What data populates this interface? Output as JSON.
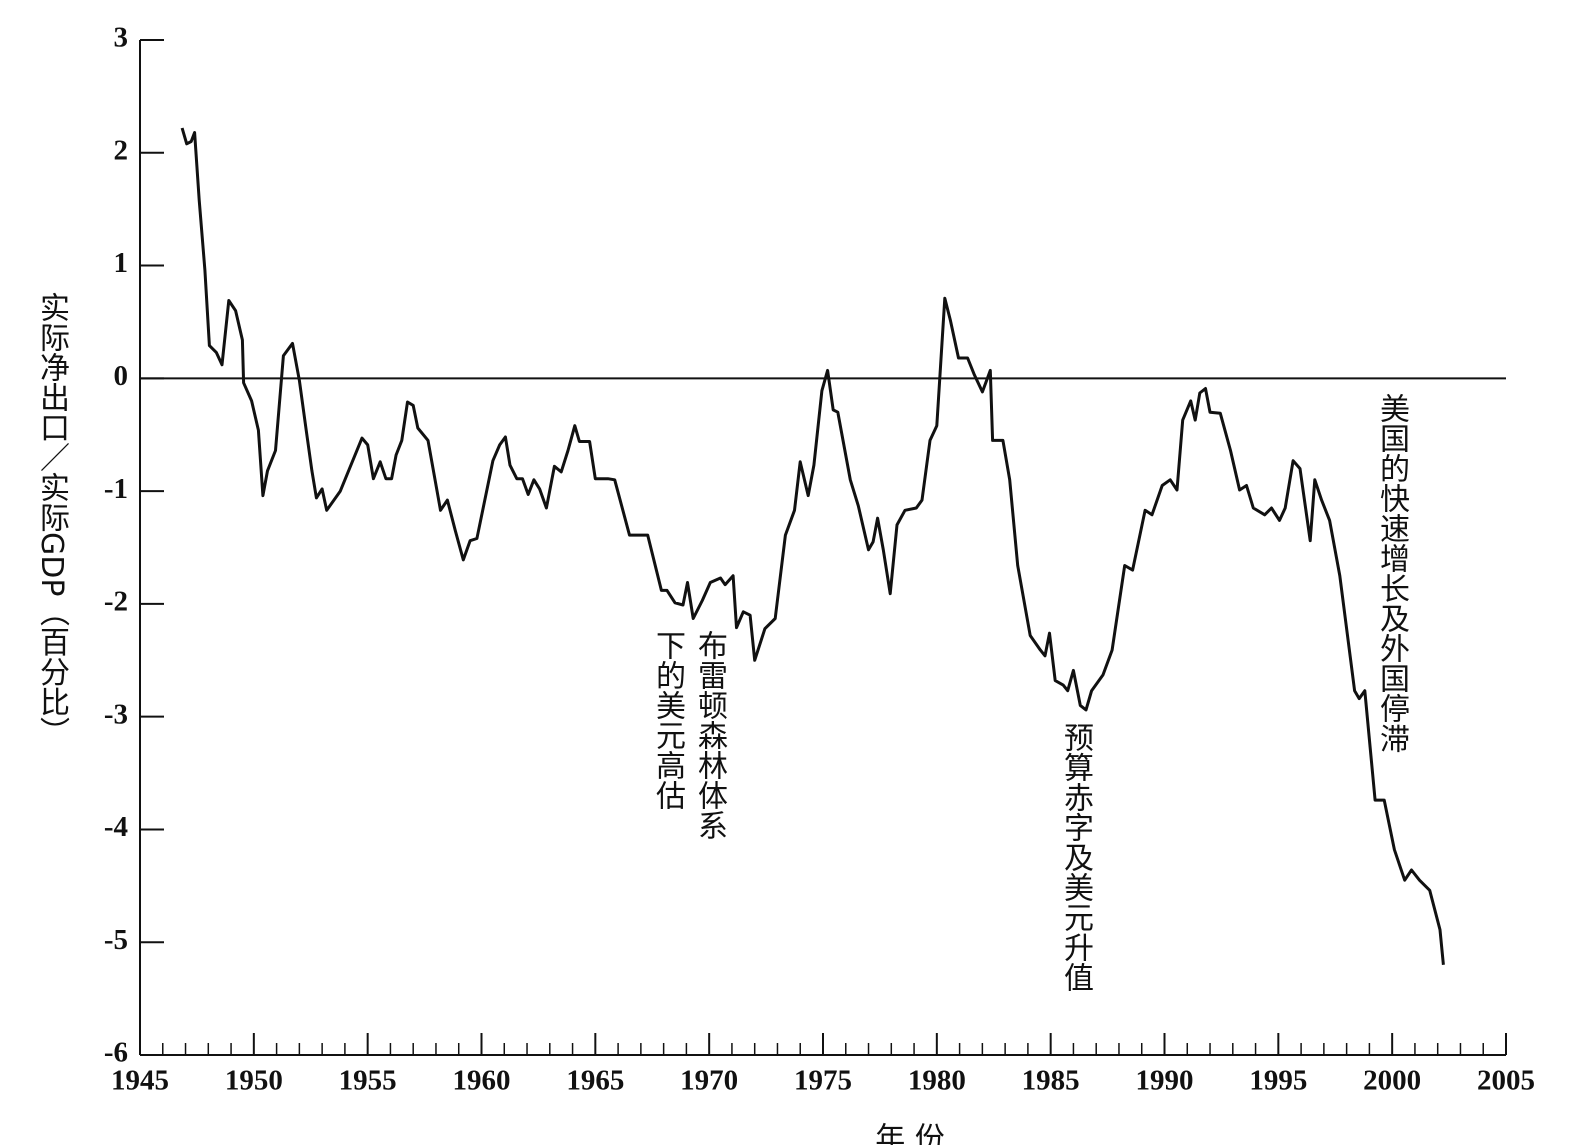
{
  "chart_data": {
    "type": "line",
    "y_label": "实际净出口／实际GDP（百分比）",
    "x_label": "年 份",
    "annotations": [
      [
        "布雷顿森林体系",
        "下的美元高估"
      ],
      [
        "预算赤字及美元升值"
      ],
      [
        "美国的快速增长及外国停滞"
      ]
    ],
    "xlim": [
      1945,
      2005
    ],
    "xticks": [
      1945,
      1950,
      1955,
      1960,
      1965,
      1970,
      1975,
      1980,
      1985,
      1990,
      1995,
      2000,
      2005
    ],
    "xminorticks": [
      1946,
      1947,
      1948,
      1949,
      1951,
      1952,
      1953,
      1954,
      1956,
      1957,
      1958,
      1959,
      1961,
      1962,
      1963,
      1964,
      1966,
      1967,
      1968,
      1969,
      1971,
      1972,
      1973,
      1974,
      1976,
      1977,
      1978,
      1979,
      1981,
      1982,
      1983,
      1984,
      1986,
      1987,
      1988,
      1989,
      1991,
      1992,
      1993,
      1994,
      1996,
      1997,
      1998,
      1999,
      2001,
      2002,
      2003,
      2004
    ],
    "ylim": [
      -6,
      3
    ],
    "yticks": [
      -6,
      -5,
      -4,
      -3,
      -2,
      -1,
      0,
      1,
      2,
      3
    ],
    "reference_line": 0,
    "color": "#111111",
    "x": [
      1946.85,
      1947.05,
      1947.25,
      1947.4,
      1947.6,
      1947.85,
      1948.05,
      1948.35,
      1948.6,
      1948.9,
      1949.2,
      1949.5,
      1949.55,
      1949.9,
      1950.2,
      1950.4,
      1950.6,
      1950.95,
      1951.3,
      1951.7,
      1952.0,
      1952.3,
      1952.55,
      1952.75,
      1953.0,
      1953.2,
      1953.8,
      1954.75,
      1955.0,
      1955.25,
      1955.55,
      1955.8,
      1956.05,
      1956.25,
      1956.5,
      1956.75,
      1957.0,
      1957.2,
      1957.65,
      1958.2,
      1958.5,
      1958.85,
      1959.2,
      1959.5,
      1959.8,
      1960.5,
      1960.8,
      1961.05,
      1961.25,
      1961.55,
      1961.8,
      1962.05,
      1962.3,
      1962.55,
      1962.85,
      1963.2,
      1963.5,
      1963.8,
      1964.1,
      1964.3,
      1964.75,
      1965.0,
      1965.55,
      1965.85,
      1966.5,
      1967.3,
      1967.9,
      1968.15,
      1968.5,
      1968.85,
      1969.05,
      1969.3,
      1969.7,
      1970.05,
      1970.5,
      1970.7,
      1971.05,
      1971.2,
      1971.5,
      1971.8,
      1972.0,
      1972.45,
      1972.9,
      1973.35,
      1973.75,
      1974.0,
      1974.35,
      1974.6,
      1974.95,
      1975.2,
      1975.45,
      1975.65,
      1976.2,
      1976.55,
      1977.0,
      1977.2,
      1977.4,
      1977.65,
      1977.95,
      1978.25,
      1978.6,
      1979.1,
      1979.35,
      1979.7,
      1980.0,
      1980.35,
      1980.6,
      1980.95,
      1981.35,
      1981.65,
      1982.0,
      1982.35,
      1982.45,
      1982.9,
      1983.2,
      1983.55,
      1984.1,
      1984.55,
      1984.75,
      1984.95,
      1985.2,
      1985.55,
      1985.75,
      1986.0,
      1986.3,
      1986.55,
      1986.8,
      1987.3,
      1987.7,
      1988.25,
      1988.6,
      1989.15,
      1989.45,
      1989.9,
      1990.25,
      1990.55,
      1990.8,
      1991.15,
      1991.35,
      1991.55,
      1991.8,
      1992.0,
      1992.45,
      1992.9,
      1993.3,
      1993.6,
      1993.9,
      1994.4,
      1994.7,
      1995.05,
      1995.3,
      1995.65,
      1995.95,
      1996.4,
      1996.6,
      1996.9,
      1997.25,
      1997.7,
      1998.35,
      1998.55,
      1998.8,
      1999.25,
      1999.65,
      2000.1,
      2000.55,
      2000.85,
      2001.2,
      2001.65,
      2002.1,
      2002.25
    ],
    "values": [
      2.22,
      2.08,
      2.1,
      2.18,
      1.58,
      0.96,
      0.29,
      0.23,
      0.12,
      0.69,
      0.6,
      0.34,
      -0.04,
      -0.2,
      -0.46,
      -1.04,
      -0.82,
      -0.64,
      0.2,
      0.31,
      -0.02,
      -0.46,
      -0.82,
      -1.06,
      -0.98,
      -1.17,
      -1.0,
      -0.53,
      -0.59,
      -0.89,
      -0.74,
      -0.89,
      -0.89,
      -0.68,
      -0.55,
      -0.21,
      -0.24,
      -0.44,
      -0.55,
      -1.17,
      -1.08,
      -1.35,
      -1.61,
      -1.44,
      -1.42,
      -0.73,
      -0.59,
      -0.52,
      -0.77,
      -0.89,
      -0.89,
      -1.03,
      -0.9,
      -0.98,
      -1.15,
      -0.78,
      -0.83,
      -0.64,
      -0.42,
      -0.56,
      -0.56,
      -0.89,
      -0.89,
      -0.9,
      -1.39,
      -1.39,
      -1.88,
      -1.88,
      -1.99,
      -2.01,
      -1.81,
      -2.13,
      -1.97,
      -1.81,
      -1.77,
      -1.83,
      -1.75,
      -2.21,
      -2.07,
      -2.1,
      -2.5,
      -2.22,
      -2.13,
      -1.39,
      -1.17,
      -0.74,
      -1.04,
      -0.77,
      -0.11,
      0.07,
      -0.28,
      -0.3,
      -0.9,
      -1.13,
      -1.52,
      -1.45,
      -1.24,
      -1.52,
      -1.91,
      -1.3,
      -1.17,
      -1.15,
      -1.08,
      -0.55,
      -0.42,
      0.71,
      0.51,
      0.18,
      0.18,
      0.03,
      -0.12,
      0.07,
      -0.55,
      -0.55,
      -0.9,
      -1.66,
      -2.28,
      -2.41,
      -2.46,
      -2.26,
      -2.68,
      -2.72,
      -2.77,
      -2.59,
      -2.9,
      -2.94,
      -2.77,
      -2.63,
      -2.41,
      -1.66,
      -1.7,
      -1.17,
      -1.21,
      -0.95,
      -0.9,
      -0.99,
      -0.37,
      -0.2,
      -0.37,
      -0.13,
      -0.09,
      -0.3,
      -0.31,
      -0.64,
      -0.99,
      -0.95,
      -1.15,
      -1.21,
      -1.15,
      -1.26,
      -1.15,
      -0.73,
      -0.8,
      -1.44,
      -0.9,
      -1.08,
      -1.26,
      -1.75,
      -2.77,
      -2.84,
      -2.77,
      -3.74,
      -3.74,
      -4.18,
      -4.45,
      -4.36,
      -4.45,
      -4.54,
      -4.89,
      -5.2
    ]
  }
}
